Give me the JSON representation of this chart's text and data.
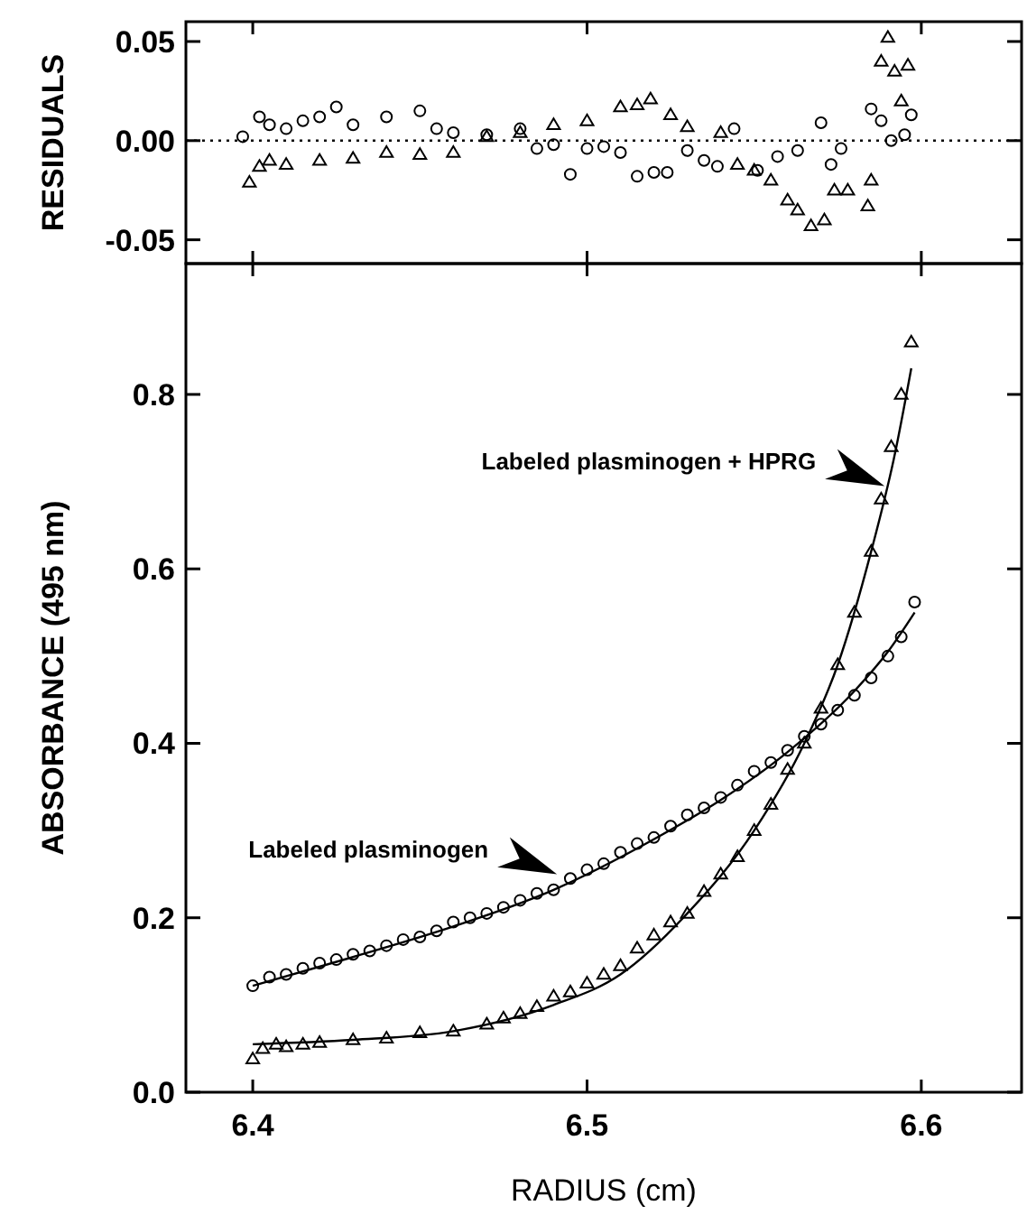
{
  "chart_data": [
    {
      "type": "scatter",
      "ylabel": "RESIDUALS",
      "xlim": [
        6.38,
        6.63
      ],
      "xticks": [
        6.4,
        6.5,
        6.6
      ],
      "ylim": [
        -0.062,
        0.06
      ],
      "yticks": [
        {
          "value": 0.05,
          "label": "0.05"
        },
        {
          "value": 0,
          "label": "0.00"
        },
        {
          "value": -0.05,
          "label": "-0.05"
        }
      ],
      "tick_labels": "y",
      "ref_lines": [
        {
          "axis": "y",
          "value": 0,
          "line_style": "dotted",
          "color": "#000000"
        }
      ],
      "series": [
        {
          "color": "#000000",
          "marker": "circle",
          "x": [
            6.397,
            6.402,
            6.405,
            6.41,
            6.415,
            6.42,
            6.425,
            6.43,
            6.44,
            6.45,
            6.455,
            6.46,
            6.47,
            6.48,
            6.485,
            6.49,
            6.495,
            6.5,
            6.505,
            6.51,
            6.515,
            6.52,
            6.524,
            6.53,
            6.535,
            6.539,
            6.544,
            6.551,
            6.557,
            6.563,
            6.57,
            6.573,
            6.576,
            6.585,
            6.588,
            6.591,
            6.595,
            6.597
          ],
          "values": [
            0.002,
            0.012,
            0.008,
            0.006,
            0.01,
            0.012,
            0.017,
            0.008,
            0.012,
            0.015,
            0.006,
            0.004,
            0.003,
            0.006,
            -0.004,
            -0.002,
            -0.017,
            -0.004,
            -0.003,
            -0.006,
            -0.018,
            -0.016,
            -0.016,
            -0.005,
            -0.01,
            -0.013,
            0.006,
            -0.015,
            -0.008,
            -0.005,
            0.009,
            -0.012,
            -0.004,
            0.016,
            0.01,
            0.0,
            0.003,
            0.013
          ]
        },
        {
          "color": "#000000",
          "marker": "triangle",
          "x": [
            6.399,
            6.402,
            6.405,
            6.41,
            6.42,
            6.43,
            6.44,
            6.45,
            6.46,
            6.47,
            6.48,
            6.49,
            6.5,
            6.51,
            6.515,
            6.519,
            6.525,
            6.53,
            6.54,
            6.545,
            6.55,
            6.555,
            6.56,
            6.563,
            6.567,
            6.571,
            6.574,
            6.578,
            6.584,
            6.585,
            6.588,
            6.59,
            6.592,
            6.594,
            6.596
          ],
          "values": [
            -0.021,
            -0.013,
            -0.01,
            -0.012,
            -0.01,
            -0.009,
            -0.006,
            -0.007,
            -0.006,
            0.002,
            0.004,
            0.008,
            0.01,
            0.017,
            0.018,
            0.021,
            0.013,
            0.007,
            0.004,
            -0.012,
            -0.015,
            -0.02,
            -0.03,
            -0.035,
            -0.043,
            -0.04,
            -0.025,
            -0.025,
            -0.033,
            -0.02,
            0.04,
            0.052,
            0.035,
            0.02,
            0.038
          ]
        }
      ]
    },
    {
      "type": "scatter",
      "xlabel": "RADIUS (cm)",
      "ylabel": "ABSORBANCE  (495 nm)",
      "xlim": [
        6.38,
        6.63
      ],
      "xticks": [
        6.4,
        6.5,
        6.6
      ],
      "ylim": [
        0,
        0.95
      ],
      "yticks": [
        {
          "value": 0,
          "label": "0.0"
        },
        0.2,
        0.4,
        0.6,
        0.8
      ],
      "annotations": [
        {
          "text": "Labeled plasminogen",
          "x": 6.491,
          "y": 0.25
        },
        {
          "text": "Labeled plasminogen + HPRG",
          "x": 6.589,
          "y": 0.695
        }
      ],
      "series": [
        {
          "color": "#000000",
          "marker": "circle",
          "x": [
            6.4,
            6.405,
            6.41,
            6.415,
            6.42,
            6.425,
            6.43,
            6.435,
            6.44,
            6.445,
            6.45,
            6.455,
            6.46,
            6.465,
            6.47,
            6.475,
            6.48,
            6.485,
            6.49,
            6.495,
            6.5,
            6.505,
            6.51,
            6.515,
            6.52,
            6.525,
            6.53,
            6.535,
            6.54,
            6.545,
            6.55,
            6.555,
            6.56,
            6.565,
            6.57,
            6.575,
            6.58,
            6.585,
            6.59,
            6.594,
            6.598
          ],
          "values": [
            0.122,
            0.132,
            0.135,
            0.142,
            0.148,
            0.152,
            0.158,
            0.162,
            0.168,
            0.175,
            0.178,
            0.185,
            0.195,
            0.2,
            0.205,
            0.212,
            0.22,
            0.228,
            0.232,
            0.245,
            0.255,
            0.262,
            0.275,
            0.285,
            0.292,
            0.305,
            0.318,
            0.326,
            0.338,
            0.352,
            0.368,
            0.378,
            0.392,
            0.408,
            0.422,
            0.438,
            0.455,
            0.475,
            0.5,
            0.522,
            0.562
          ]
        },
        {
          "color": "#000000",
          "marker": "triangle",
          "x": [
            6.4,
            6.403,
            6.407,
            6.41,
            6.415,
            6.42,
            6.43,
            6.44,
            6.45,
            6.46,
            6.47,
            6.475,
            6.48,
            6.485,
            6.49,
            6.495,
            6.5,
            6.505,
            6.51,
            6.515,
            6.52,
            6.525,
            6.53,
            6.535,
            6.54,
            6.545,
            6.55,
            6.555,
            6.56,
            6.565,
            6.57,
            6.575,
            6.58,
            6.585,
            6.588,
            6.591,
            6.594,
            6.597
          ],
          "values": [
            0.038,
            0.05,
            0.055,
            0.052,
            0.055,
            0.057,
            0.06,
            0.062,
            0.068,
            0.07,
            0.078,
            0.085,
            0.09,
            0.098,
            0.11,
            0.115,
            0.125,
            0.135,
            0.145,
            0.165,
            0.18,
            0.195,
            0.205,
            0.23,
            0.25,
            0.27,
            0.3,
            0.33,
            0.37,
            0.4,
            0.44,
            0.49,
            0.55,
            0.62,
            0.68,
            0.74,
            0.8,
            0.86
          ]
        },
        {
          "type": "line",
          "color": "#000000",
          "marker": "none",
          "x": [
            6.4,
            6.43,
            6.46,
            6.49,
            6.52,
            6.54,
            6.56,
            6.58,
            6.59,
            6.598
          ],
          "values": [
            0.122,
            0.155,
            0.19,
            0.232,
            0.29,
            0.335,
            0.39,
            0.46,
            0.505,
            0.55
          ]
        },
        {
          "type": "line",
          "color": "#000000",
          "marker": "none",
          "x": [
            6.4,
            6.43,
            6.46,
            6.49,
            6.51,
            6.53,
            6.55,
            6.565,
            6.575,
            6.585,
            6.592,
            6.597
          ],
          "values": [
            0.055,
            0.06,
            0.07,
            0.1,
            0.135,
            0.205,
            0.3,
            0.4,
            0.49,
            0.62,
            0.73,
            0.83
          ]
        }
      ]
    }
  ]
}
